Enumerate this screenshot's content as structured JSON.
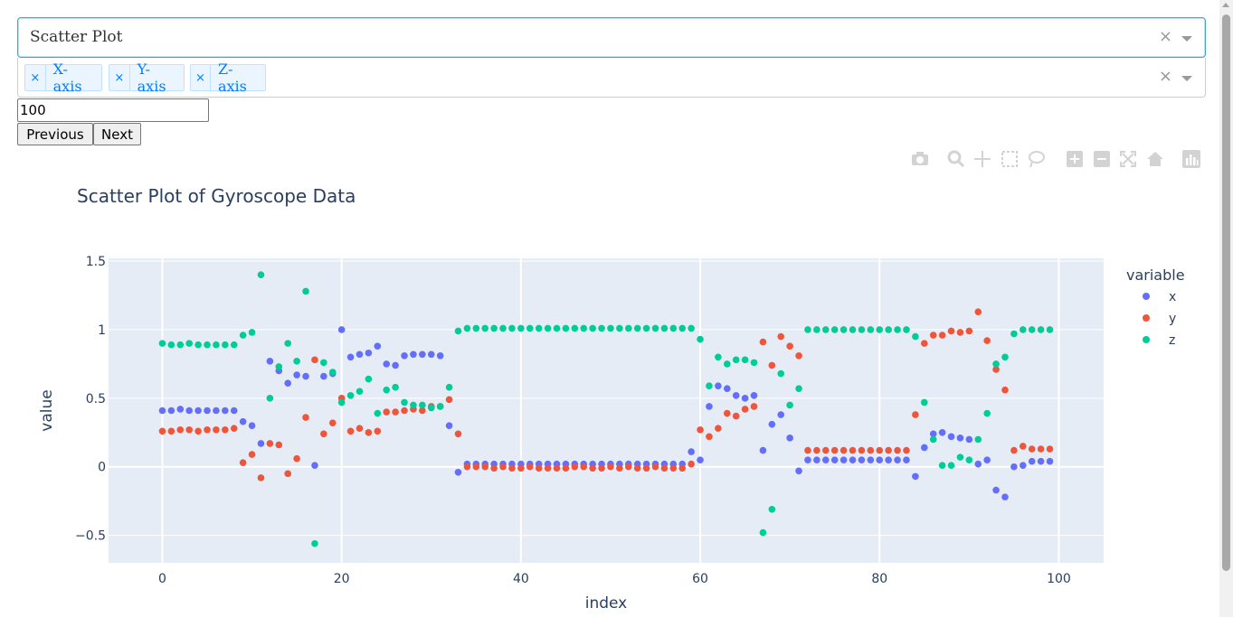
{
  "dropdown_chart_type": {
    "value": "Scatter Plot"
  },
  "dropdown_axes": {
    "chips": [
      "X-axis",
      "Y-axis",
      "Z-axis"
    ]
  },
  "window_input": {
    "value": "100"
  },
  "buttons": {
    "previous": "Previous",
    "next": "Next"
  },
  "icons": {
    "clear": "×",
    "chip_remove": "×"
  },
  "modebar_icons": [
    "camera-icon",
    "zoom-icon",
    "pan-icon",
    "box-select-icon",
    "lasso-select-icon",
    "zoom-in-icon",
    "zoom-out-icon",
    "autoscale-icon",
    "reset-axes-icon",
    "plotly-logo-icon"
  ],
  "colors": {
    "x": "#636efa",
    "y": "#EF553B",
    "z": "#00cc96",
    "plot_bg": "#E5ECF6",
    "accent": "#3fa7d6"
  },
  "chart_data": {
    "type": "scatter",
    "title": "Scatter Plot of Gyroscope Data",
    "xlabel": "index",
    "ylabel": "value",
    "legend_title": "variable",
    "legend_position": "right",
    "grid": true,
    "xlim": [
      -6,
      105
    ],
    "ylim": [
      -0.7,
      1.52
    ],
    "x_ticks": [
      0,
      20,
      40,
      60,
      80,
      100
    ],
    "x_tick_labels": [
      "0",
      "20",
      "40",
      "60",
      "80",
      "100"
    ],
    "y_ticks": [
      -0.5,
      0,
      0.5,
      1,
      1.5
    ],
    "y_tick_labels": [
      "−0.5",
      "0",
      "0.5",
      "1",
      "1.5"
    ],
    "x": [
      0,
      1,
      2,
      3,
      4,
      5,
      6,
      7,
      8,
      9,
      10,
      11,
      12,
      13,
      14,
      15,
      16,
      17,
      18,
      19,
      20,
      21,
      22,
      23,
      24,
      25,
      26,
      27,
      28,
      29,
      30,
      31,
      32,
      33,
      34,
      35,
      36,
      37,
      38,
      39,
      40,
      41,
      42,
      43,
      44,
      45,
      46,
      47,
      48,
      49,
      50,
      51,
      52,
      53,
      54,
      55,
      56,
      57,
      58,
      59,
      60,
      61,
      62,
      63,
      64,
      65,
      66,
      67,
      68,
      69,
      70,
      71,
      72,
      73,
      74,
      75,
      76,
      77,
      78,
      79,
      80,
      81,
      82,
      83,
      84,
      85,
      86,
      87,
      88,
      89,
      90,
      91,
      92,
      93,
      94,
      95,
      96,
      97,
      98,
      99
    ],
    "series": [
      {
        "name": "x",
        "values": [
          0.41,
          0.41,
          0.42,
          0.41,
          0.41,
          0.41,
          0.41,
          0.41,
          0.41,
          0.33,
          0.3,
          0.17,
          0.77,
          0.7,
          0.61,
          0.67,
          0.66,
          0.01,
          0.66,
          0.68,
          1.0,
          0.8,
          0.82,
          0.83,
          0.88,
          0.75,
          0.74,
          0.81,
          0.82,
          0.82,
          0.82,
          0.81,
          0.3,
          -0.04,
          0.02,
          0.02,
          0.02,
          0.02,
          0.02,
          0.02,
          0.02,
          0.02,
          0.02,
          0.02,
          0.02,
          0.02,
          0.02,
          0.02,
          0.02,
          0.02,
          0.02,
          0.02,
          0.02,
          0.02,
          0.02,
          0.02,
          0.02,
          0.02,
          0.02,
          0.11,
          0.05,
          0.44,
          0.59,
          0.57,
          0.52,
          0.5,
          0.52,
          0.12,
          0.31,
          0.38,
          0.21,
          -0.03,
          0.05,
          0.05,
          0.05,
          0.05,
          0.05,
          0.05,
          0.05,
          0.05,
          0.05,
          0.05,
          0.05,
          0.05,
          -0.07,
          0.14,
          0.24,
          0.25,
          0.22,
          0.21,
          0.2,
          0.02,
          0.05,
          -0.17,
          -0.22,
          0.0,
          0.01,
          0.04,
          0.04,
          0.04
        ]
      },
      {
        "name": "y",
        "values": [
          0.26,
          0.26,
          0.27,
          0.27,
          0.26,
          0.27,
          0.27,
          0.27,
          0.28,
          0.03,
          0.09,
          -0.08,
          0.17,
          0.16,
          -0.05,
          0.06,
          0.36,
          0.78,
          0.24,
          0.32,
          0.5,
          0.26,
          0.28,
          0.25,
          0.26,
          0.4,
          0.4,
          0.41,
          0.42,
          0.41,
          0.44,
          0.44,
          0.49,
          0.24,
          0.0,
          0.0,
          0.0,
          -0.01,
          0.0,
          -0.01,
          -0.01,
          0.0,
          -0.01,
          -0.01,
          -0.01,
          -0.01,
          0.0,
          0.0,
          -0.01,
          -0.01,
          0.0,
          -0.01,
          0.0,
          -0.01,
          -0.01,
          0.0,
          -0.01,
          -0.01,
          -0.01,
          0.02,
          0.27,
          0.22,
          0.28,
          0.39,
          0.37,
          0.42,
          0.44,
          0.91,
          0.74,
          0.95,
          0.88,
          0.81,
          0.12,
          0.12,
          0.12,
          0.12,
          0.12,
          0.12,
          0.12,
          0.12,
          0.12,
          0.12,
          0.12,
          0.12,
          0.38,
          0.9,
          0.96,
          0.96,
          0.99,
          0.98,
          0.99,
          1.13,
          0.92,
          0.71,
          0.56,
          0.12,
          0.15,
          0.13,
          0.13,
          0.13
        ]
      },
      {
        "name": "z",
        "values": [
          0.9,
          0.89,
          0.89,
          0.9,
          0.89,
          0.89,
          0.89,
          0.89,
          0.89,
          0.96,
          0.98,
          1.4,
          0.5,
          0.73,
          0.9,
          0.77,
          1.28,
          -0.56,
          0.76,
          0.69,
          0.47,
          0.52,
          0.55,
          0.64,
          0.39,
          0.56,
          0.58,
          0.47,
          0.45,
          0.45,
          0.43,
          0.44,
          0.58,
          0.99,
          1.01,
          1.01,
          1.01,
          1.01,
          1.01,
          1.01,
          1.01,
          1.01,
          1.01,
          1.01,
          1.01,
          1.01,
          1.01,
          1.01,
          1.01,
          1.01,
          1.01,
          1.01,
          1.01,
          1.01,
          1.01,
          1.01,
          1.01,
          1.01,
          1.01,
          1.01,
          0.93,
          0.59,
          0.8,
          0.75,
          0.78,
          0.78,
          0.76,
          -0.48,
          -0.31,
          0.68,
          0.45,
          0.57,
          1.0,
          1.0,
          1.0,
          1.0,
          1.0,
          1.0,
          1.0,
          1.0,
          1.0,
          1.0,
          1.0,
          1.0,
          0.95,
          0.47,
          0.2,
          0.01,
          0.01,
          0.07,
          0.05,
          0.2,
          0.39,
          0.75,
          0.8,
          0.97,
          1.0,
          1.0,
          1.0,
          1.0
        ]
      }
    ]
  }
}
